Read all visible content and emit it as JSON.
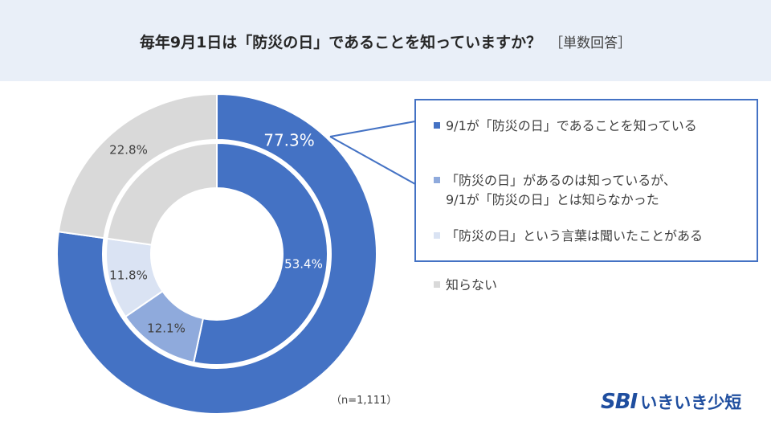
{
  "title": "毎年9月1日は「防災の日」であることを知っていますか？",
  "title_suffix": "［単数回答］",
  "n_note": "（n=1,111）",
  "logo": {
    "brand": "SBI",
    "product": "いきいき少短"
  },
  "legend": [
    {
      "lines": [
        "9/1が「防災の日」であることを知っている"
      ],
      "color": "#4472c4"
    },
    {
      "lines": [
        "「防災の日」があるのは知っているが、",
        "9/1が「防災の日」とは知らなかった"
      ],
      "color": "#8faadc"
    },
    {
      "lines": [
        "「防災の日」という言葉は聞いたことがある"
      ],
      "color": "#dae3f3"
    },
    {
      "lines": [
        "知らない"
      ],
      "color": "#d9d9d9"
    }
  ],
  "chart_data": {
    "type": "pie",
    "outer": {
      "values": [
        77.3,
        22.8
      ],
      "labels": [
        "77.3%",
        "22.8%"
      ],
      "colors": [
        "#4472c4",
        "#d9d9d9"
      ]
    },
    "inner": {
      "values": [
        53.4,
        12.1,
        11.8,
        22.8
      ],
      "labels": [
        "53.4%",
        "12.1%",
        "11.8%",
        ""
      ],
      "colors": [
        "#4472c4",
        "#8faadc",
        "#dae3f3",
        "#d9d9d9"
      ]
    }
  }
}
